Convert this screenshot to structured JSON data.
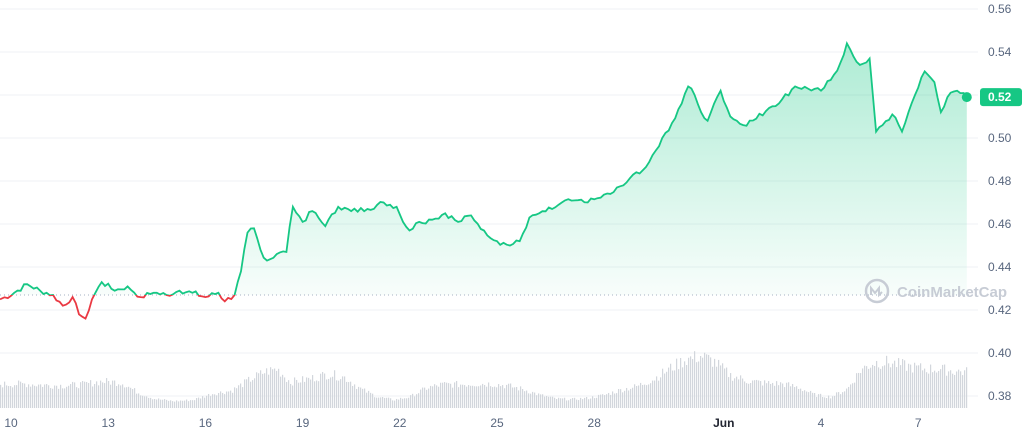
{
  "watermark": {
    "text": "CoinMarketCap",
    "icon": "coinmarketcap-logo-icon"
  },
  "colors": {
    "up": "#16c784",
    "down": "#ea3943",
    "grid": "#eff2f5",
    "axis_text": "#58667e",
    "volume": "#d2d6dc",
    "baseline": "#a6b0c3"
  },
  "current_price_label": "0.52",
  "chart_data": [
    {
      "type": "area",
      "title": "",
      "xlabel": "",
      "ylabel": "",
      "y_ticks": [
        "0.56",
        "0.54",
        "0.52",
        "0.50",
        "0.48",
        "0.46",
        "0.44",
        "0.42",
        "0.40",
        "0.38"
      ],
      "x_ticks": [
        {
          "label": "10",
          "day": 10,
          "bold": false
        },
        {
          "label": "13",
          "day": 13,
          "bold": false
        },
        {
          "label": "16",
          "day": 16,
          "bold": false
        },
        {
          "label": "19",
          "day": 19,
          "bold": false
        },
        {
          "label": "22",
          "day": 22,
          "bold": false
        },
        {
          "label": "25",
          "day": 25,
          "bold": false
        },
        {
          "label": "28",
          "day": 28,
          "bold": false
        },
        {
          "label": "Jun",
          "day": 32,
          "bold": true
        },
        {
          "label": "4",
          "day": 35,
          "bold": false
        },
        {
          "label": "7",
          "day": 38,
          "bold": false
        }
      ],
      "ylim": [
        0.376,
        0.561
      ],
      "baseline_price": 0.427,
      "grid": true,
      "series": [
        {
          "points": [
            [
              9.7,
              0.425
            ],
            [
              10.1,
              0.428
            ],
            [
              10.5,
              0.432
            ],
            [
              10.9,
              0.429
            ],
            [
              11.3,
              0.427
            ],
            [
              11.6,
              0.422
            ],
            [
              11.9,
              0.426
            ],
            [
              12.1,
              0.418
            ],
            [
              12.3,
              0.416
            ],
            [
              12.5,
              0.425
            ],
            [
              12.8,
              0.433
            ],
            [
              13.2,
              0.429
            ],
            [
              13.6,
              0.431
            ],
            [
              14.0,
              0.426
            ],
            [
              14.4,
              0.428
            ],
            [
              14.8,
              0.427
            ],
            [
              15.2,
              0.429
            ],
            [
              15.6,
              0.428
            ],
            [
              16.0,
              0.426
            ],
            [
              16.4,
              0.428
            ],
            [
              16.6,
              0.424
            ],
            [
              16.9,
              0.427
            ],
            [
              17.1,
              0.438
            ],
            [
              17.3,
              0.456
            ],
            [
              17.5,
              0.458
            ],
            [
              17.7,
              0.448
            ],
            [
              17.9,
              0.443
            ],
            [
              18.2,
              0.446
            ],
            [
              18.5,
              0.447
            ],
            [
              18.7,
              0.468
            ],
            [
              19.0,
              0.461
            ],
            [
              19.3,
              0.466
            ],
            [
              19.7,
              0.459
            ],
            [
              20.1,
              0.468
            ],
            [
              20.5,
              0.466
            ],
            [
              21.0,
              0.467
            ],
            [
              21.5,
              0.47
            ],
            [
              21.9,
              0.468
            ],
            [
              22.1,
              0.461
            ],
            [
              22.3,
              0.457
            ],
            [
              22.6,
              0.461
            ],
            [
              23.0,
              0.462
            ],
            [
              23.4,
              0.465
            ],
            [
              23.8,
              0.461
            ],
            [
              24.2,
              0.464
            ],
            [
              24.6,
              0.457
            ],
            [
              25.0,
              0.452
            ],
            [
              25.4,
              0.45
            ],
            [
              25.7,
              0.452
            ],
            [
              26.0,
              0.463
            ],
            [
              26.3,
              0.465
            ],
            [
              26.7,
              0.467
            ],
            [
              27.0,
              0.47
            ],
            [
              27.4,
              0.471
            ],
            [
              27.8,
              0.47
            ],
            [
              28.1,
              0.472
            ],
            [
              28.5,
              0.474
            ],
            [
              28.9,
              0.478
            ],
            [
              29.2,
              0.483
            ],
            [
              29.5,
              0.485
            ],
            [
              29.8,
              0.492
            ],
            [
              30.1,
              0.5
            ],
            [
              30.4,
              0.507
            ],
            [
              30.7,
              0.516
            ],
            [
              30.9,
              0.524
            ],
            [
              31.1,
              0.52
            ],
            [
              31.3,
              0.512
            ],
            [
              31.5,
              0.508
            ],
            [
              31.7,
              0.516
            ],
            [
              31.9,
              0.522
            ],
            [
              32.2,
              0.51
            ],
            [
              32.6,
              0.506
            ],
            [
              33.0,
              0.509
            ],
            [
              33.4,
              0.514
            ],
            [
              33.8,
              0.518
            ],
            [
              34.2,
              0.524
            ],
            [
              34.6,
              0.523
            ],
            [
              35.0,
              0.522
            ],
            [
              35.3,
              0.527
            ],
            [
              35.6,
              0.535
            ],
            [
              35.8,
              0.544
            ],
            [
              36.0,
              0.538
            ],
            [
              36.2,
              0.534
            ],
            [
              36.5,
              0.537
            ],
            [
              36.7,
              0.503
            ],
            [
              36.9,
              0.506
            ],
            [
              37.2,
              0.511
            ],
            [
              37.5,
              0.503
            ],
            [
              37.7,
              0.512
            ],
            [
              37.9,
              0.52
            ],
            [
              38.2,
              0.531
            ],
            [
              38.5,
              0.526
            ],
            [
              38.7,
              0.512
            ],
            [
              38.9,
              0.519
            ],
            [
              39.2,
              0.522
            ],
            [
              39.5,
              0.519
            ]
          ]
        }
      ],
      "volume_range": [
        0,
        1
      ],
      "volume_series": [
        [
          9.7,
          0.38
        ],
        [
          10.4,
          0.39
        ],
        [
          11.0,
          0.37
        ],
        [
          11.6,
          0.36
        ],
        [
          12.2,
          0.38
        ],
        [
          12.8,
          0.43
        ],
        [
          13.4,
          0.41
        ],
        [
          13.9,
          0.25
        ],
        [
          14.4,
          0.15
        ],
        [
          15.0,
          0.11
        ],
        [
          15.6,
          0.13
        ],
        [
          16.2,
          0.23
        ],
        [
          16.8,
          0.28
        ],
        [
          17.3,
          0.44
        ],
        [
          17.8,
          0.58
        ],
        [
          18.2,
          0.63
        ],
        [
          18.6,
          0.42
        ],
        [
          19.2,
          0.47
        ],
        [
          19.8,
          0.55
        ],
        [
          20.3,
          0.49
        ],
        [
          20.8,
          0.3
        ],
        [
          21.3,
          0.18
        ],
        [
          21.8,
          0.13
        ],
        [
          22.3,
          0.18
        ],
        [
          22.8,
          0.32
        ],
        [
          23.3,
          0.38
        ],
        [
          23.8,
          0.38
        ],
        [
          24.3,
          0.39
        ],
        [
          24.8,
          0.39
        ],
        [
          25.3,
          0.36
        ],
        [
          25.8,
          0.3
        ],
        [
          26.3,
          0.21
        ],
        [
          26.8,
          0.15
        ],
        [
          27.3,
          0.14
        ],
        [
          27.8,
          0.16
        ],
        [
          28.3,
          0.21
        ],
        [
          28.8,
          0.29
        ],
        [
          29.3,
          0.35
        ],
        [
          29.8,
          0.46
        ],
        [
          30.3,
          0.63
        ],
        [
          30.8,
          0.78
        ],
        [
          31.3,
          0.84
        ],
        [
          31.7,
          0.74
        ],
        [
          32.2,
          0.52
        ],
        [
          32.8,
          0.43
        ],
        [
          33.3,
          0.4
        ],
        [
          33.8,
          0.39
        ],
        [
          34.3,
          0.33
        ],
        [
          34.8,
          0.21
        ],
        [
          35.3,
          0.18
        ],
        [
          35.8,
          0.31
        ],
        [
          36.2,
          0.61
        ],
        [
          36.6,
          0.73
        ],
        [
          37.0,
          0.74
        ],
        [
          37.4,
          0.7
        ],
        [
          37.8,
          0.66
        ],
        [
          38.2,
          0.63
        ],
        [
          38.6,
          0.63
        ],
        [
          39.0,
          0.6
        ],
        [
          39.5,
          0.58
        ]
      ]
    }
  ]
}
